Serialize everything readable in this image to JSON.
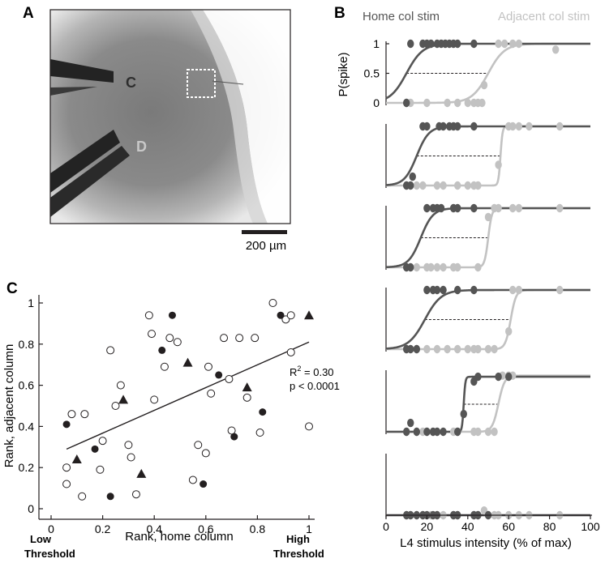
{
  "panels": {
    "a": {
      "letter": "A",
      "electrode_labels": [
        "C",
        "D"
      ],
      "scale_bar_label": "200 µm",
      "colors": {
        "tissue": "#7c7c7c",
        "electrode": "#232323",
        "label_c": "#2e2e2e",
        "label_d": "#c8c8c8"
      }
    },
    "b": {
      "letter": "B",
      "legend": {
        "home": "Home col stim",
        "adjacent": "Adjacent col stim"
      },
      "colors": {
        "home": "#555555",
        "adjacent": "#c2c2c2"
      }
    },
    "c": {
      "letter": "C",
      "stats": {
        "r2_label": "R",
        "r2_sup": "2",
        "r2_value": " = 0.30",
        "p_text": "p < 0.0001"
      },
      "low_threshold": [
        "Low",
        "Threshold"
      ],
      "high_threshold": [
        "High",
        "Threshold"
      ]
    }
  },
  "chart_data": [
    {
      "id": "scatter_rank",
      "type": "scatter",
      "xlabel": "Rank, home column",
      "ylabel": "Rank, adjacent column",
      "xlim": [
        0,
        1
      ],
      "ylim": [
        0,
        1
      ],
      "xticks": [
        0,
        0.2,
        0.4,
        0.6,
        0.8,
        1
      ],
      "yticks": [
        0,
        0.2,
        0.4,
        0.6,
        0.8,
        1
      ],
      "xtick_labels": [
        "0",
        "0.2",
        "0.4",
        "0.6",
        "0.8",
        "1"
      ],
      "ytick_labels": [
        "0",
        "0.2",
        "0.4",
        "0.6",
        "0.8",
        "1"
      ],
      "fit_line": {
        "x": [
          0.06,
          1.0
        ],
        "y": [
          0.29,
          0.81
        ]
      },
      "series": [
        {
          "marker": "open-circle",
          "points": [
            [
              0.06,
              0.12
            ],
            [
              0.06,
              0.2
            ],
            [
              0.08,
              0.46
            ],
            [
              0.12,
              0.06
            ],
            [
              0.13,
              0.46
            ],
            [
              0.19,
              0.19
            ],
            [
              0.2,
              0.33
            ],
            [
              0.23,
              0.77
            ],
            [
              0.25,
              0.5
            ],
            [
              0.27,
              0.6
            ],
            [
              0.3,
              0.31
            ],
            [
              0.31,
              0.25
            ],
            [
              0.33,
              0.07
            ],
            [
              0.38,
              0.94
            ],
            [
              0.39,
              0.85
            ],
            [
              0.4,
              0.53
            ],
            [
              0.44,
              0.69
            ],
            [
              0.46,
              0.83
            ],
            [
              0.49,
              0.81
            ],
            [
              0.55,
              0.14
            ],
            [
              0.57,
              0.31
            ],
            [
              0.6,
              0.27
            ],
            [
              0.61,
              0.69
            ],
            [
              0.62,
              0.56
            ],
            [
              0.67,
              0.83
            ],
            [
              0.69,
              0.63
            ],
            [
              0.7,
              0.38
            ],
            [
              0.73,
              0.83
            ],
            [
              0.76,
              0.54
            ],
            [
              0.79,
              0.83
            ],
            [
              0.81,
              0.37
            ],
            [
              0.86,
              1.0
            ],
            [
              0.91,
              0.92
            ],
            [
              0.93,
              0.94
            ],
            [
              0.93,
              0.76
            ],
            [
              1.0,
              0.4
            ]
          ]
        },
        {
          "marker": "filled-circle",
          "points": [
            [
              0.06,
              0.41
            ],
            [
              0.17,
              0.29
            ],
            [
              0.23,
              0.06
            ],
            [
              0.43,
              0.77
            ],
            [
              0.47,
              0.94
            ],
            [
              0.59,
              0.12
            ],
            [
              0.65,
              0.65
            ],
            [
              0.71,
              0.35
            ],
            [
              0.82,
              0.47
            ],
            [
              0.89,
              0.94
            ]
          ]
        },
        {
          "marker": "triangle",
          "points": [
            [
              0.1,
              0.24
            ],
            [
              0.28,
              0.53
            ],
            [
              0.35,
              0.17
            ],
            [
              0.53,
              0.71
            ],
            [
              0.76,
              0.59
            ],
            [
              1.0,
              0.94
            ]
          ]
        }
      ]
    },
    {
      "id": "spike_probability",
      "type": "line",
      "xlabel": "L4 stimulus intensity (% of max)",
      "ylabel": "P(spike)",
      "xlim": [
        0,
        100
      ],
      "xticks": [
        0,
        20,
        40,
        60,
        80,
        100
      ],
      "xtick_labels": [
        "0",
        "20",
        "40",
        "60",
        "80",
        "100"
      ],
      "yticks": [
        0,
        0.5,
        1
      ],
      "ytick_labels": [
        "0",
        "0.5",
        "1"
      ],
      "rows": [
        {
          "home": {
            "threshold": 10,
            "slope": 4,
            "max": 1,
            "points": [
              [
                10,
                0
              ],
              [
                12,
                1
              ],
              [
                18,
                1
              ],
              [
                20,
                1
              ],
              [
                22,
                1
              ],
              [
                25,
                1
              ],
              [
                27,
                1
              ],
              [
                29,
                1
              ],
              [
                31,
                1
              ],
              [
                33,
                1
              ],
              [
                35,
                1
              ],
              [
                43,
                1
              ]
            ]
          },
          "adjacent": {
            "threshold": 50,
            "slope": 4,
            "max": 1,
            "points": [
              [
                10,
                0
              ],
              [
                12,
                0
              ],
              [
                20,
                0
              ],
              [
                30,
                0
              ],
              [
                35,
                0
              ],
              [
                40,
                0
              ],
              [
                43,
                0
              ],
              [
                45,
                0
              ],
              [
                47,
                0
              ],
              [
                48,
                0.3
              ],
              [
                55,
                1
              ],
              [
                58,
                1
              ],
              [
                62,
                1
              ],
              [
                65,
                1
              ],
              [
                83,
                0.9
              ]
            ]
          }
        },
        {
          "home": {
            "threshold": 15,
            "slope": 3,
            "max": 1,
            "points": [
              [
                10,
                0
              ],
              [
                12,
                0
              ],
              [
                13,
                0.15
              ],
              [
                18,
                1
              ],
              [
                20,
                1
              ],
              [
                26,
                1
              ],
              [
                28,
                1
              ],
              [
                31,
                1
              ],
              [
                33,
                1
              ],
              [
                35,
                1
              ],
              [
                43,
                1
              ]
            ]
          },
          "adjacent": {
            "threshold": 56,
            "slope": 0.5,
            "max": 1,
            "points": [
              [
                10,
                0
              ],
              [
                15,
                0
              ],
              [
                18,
                0
              ],
              [
                25,
                0
              ],
              [
                28,
                0
              ],
              [
                35,
                0
              ],
              [
                40,
                0
              ],
              [
                43,
                0
              ],
              [
                45,
                0
              ],
              [
                55,
                0.35
              ],
              [
                60,
                1
              ],
              [
                62,
                1
              ],
              [
                65,
                1
              ],
              [
                70,
                1
              ],
              [
                85,
                1
              ]
            ]
          }
        },
        {
          "home": {
            "threshold": 17,
            "slope": 3,
            "max": 1,
            "points": [
              [
                10,
                0
              ],
              [
                12,
                0
              ],
              [
                20,
                1
              ],
              [
                23,
                1
              ],
              [
                25,
                1
              ],
              [
                27,
                1
              ],
              [
                33,
                1
              ],
              [
                35,
                1
              ],
              [
                43,
                1
              ]
            ]
          },
          "adjacent": {
            "threshold": 50,
            "slope": 0.9,
            "max": 1,
            "points": [
              [
                10,
                0
              ],
              [
                15,
                0
              ],
              [
                20,
                0
              ],
              [
                22,
                0
              ],
              [
                25,
                0
              ],
              [
                28,
                0
              ],
              [
                33,
                0
              ],
              [
                35,
                0
              ],
              [
                45,
                0
              ],
              [
                50,
                0.85
              ],
              [
                53,
                1
              ],
              [
                55,
                1
              ],
              [
                62,
                1
              ],
              [
                65,
                1
              ],
              [
                85,
                1
              ]
            ]
          }
        },
        {
          "home": {
            "threshold": 19,
            "slope": 4,
            "max": 1,
            "points": [
              [
                10,
                0
              ],
              [
                12,
                0
              ],
              [
                15,
                0
              ],
              [
                20,
                1
              ],
              [
                23,
                1
              ],
              [
                25,
                1
              ],
              [
                28,
                1
              ],
              [
                35,
                1
              ],
              [
                43,
                1
              ]
            ]
          },
          "adjacent": {
            "threshold": 61,
            "slope": 1.3,
            "max": 1,
            "points": [
              [
                10,
                0
              ],
              [
                15,
                0
              ],
              [
                20,
                0
              ],
              [
                25,
                0
              ],
              [
                30,
                0
              ],
              [
                35,
                0
              ],
              [
                40,
                0
              ],
              [
                43,
                0
              ],
              [
                45,
                0
              ],
              [
                50,
                0
              ],
              [
                53,
                0
              ],
              [
                60,
                0.3
              ],
              [
                62,
                1
              ],
              [
                65,
                1
              ],
              [
                85,
                1
              ]
            ]
          }
        },
        {
          "home": {
            "threshold": 38,
            "slope": 0.4,
            "max": 0.93,
            "points": [
              [
                10,
                0
              ],
              [
                12,
                0.15
              ],
              [
                15,
                0
              ],
              [
                20,
                0
              ],
              [
                23,
                0
              ],
              [
                25,
                0
              ],
              [
                28,
                0
              ],
              [
                35,
                0
              ],
              [
                38,
                0.3
              ],
              [
                43,
                0.85
              ],
              [
                45,
                0.93
              ],
              [
                55,
                0.93
              ],
              [
                60,
                0.93
              ]
            ]
          },
          "adjacent": {
            "threshold": 55,
            "slope": 1.5,
            "max": 0.95,
            "points": [
              [
                10,
                0
              ],
              [
                15,
                0
              ],
              [
                18,
                0
              ],
              [
                20,
                0
              ],
              [
                25,
                0
              ],
              [
                33,
                0
              ],
              [
                35,
                0
              ],
              [
                43,
                0
              ],
              [
                45,
                0
              ],
              [
                50,
                0
              ],
              [
                53,
                0
              ],
              [
                57,
                0.95
              ],
              [
                60,
                0.95
              ],
              [
                62,
                0.95
              ]
            ]
          }
        },
        {
          "home": {
            "threshold": null,
            "slope": 1,
            "max": 0,
            "points": [
              [
                10,
                0
              ],
              [
                12,
                0
              ],
              [
                15,
                0
              ],
              [
                18,
                0
              ],
              [
                20,
                0
              ],
              [
                23,
                0
              ],
              [
                25,
                0
              ],
              [
                33,
                0
              ],
              [
                35,
                0
              ],
              [
                43,
                0
              ],
              [
                45,
                0
              ],
              [
                50,
                0
              ]
            ]
          },
          "adjacent": {
            "threshold": null,
            "slope": 1,
            "max": 0,
            "points": [
              [
                10,
                0
              ],
              [
                12,
                0
              ],
              [
                15,
                0
              ],
              [
                18,
                0
              ],
              [
                22,
                0
              ],
              [
                25,
                0
              ],
              [
                28,
                0
              ],
              [
                33,
                0
              ],
              [
                35,
                0
              ],
              [
                43,
                0
              ],
              [
                45,
                0
              ],
              [
                48,
                0.08
              ],
              [
                50,
                0
              ],
              [
                53,
                0
              ],
              [
                55,
                0
              ],
              [
                60,
                0
              ],
              [
                65,
                0
              ],
              [
                70,
                0
              ],
              [
                85,
                0
              ]
            ]
          }
        }
      ]
    }
  ]
}
